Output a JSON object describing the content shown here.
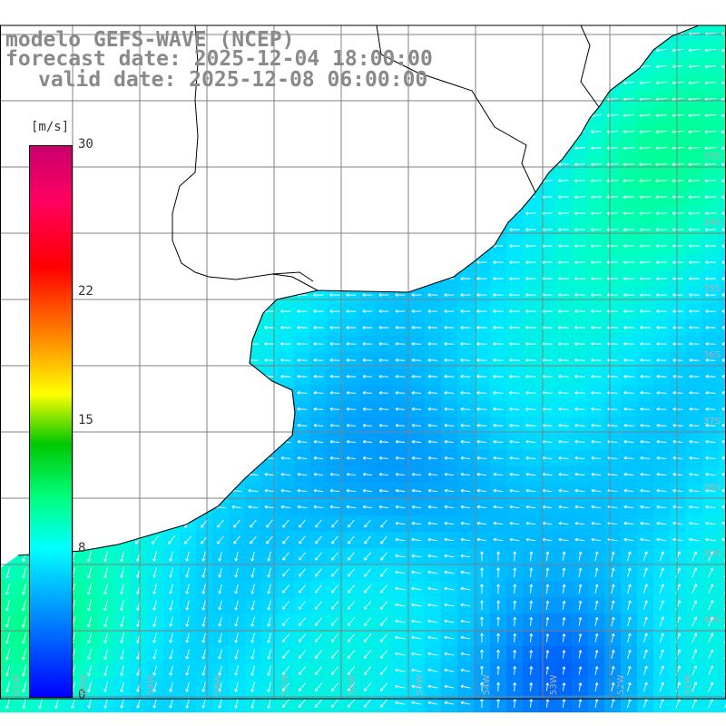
{
  "title": {
    "line1": "modelo GEFS-WAVE (NCEP)",
    "line2": "forecast date: 2025-12-04 18:00:00",
    "line3": "valid date: 2025-12-08 06:00:00"
  },
  "colorbar": {
    "unit": "[m/s]",
    "min": 0,
    "max": 30,
    "ticks": [
      {
        "label": "30",
        "value": 30
      },
      {
        "label": "22",
        "value": 22
      },
      {
        "label": "15",
        "value": 15
      },
      {
        "label": "8",
        "value": 8
      },
      {
        "label": "0",
        "value": 0
      }
    ],
    "colors": [
      "#0000ff",
      "#00a0ff",
      "#00ffff",
      "#00ff80",
      "#00c800",
      "#ffff00",
      "#ff8000",
      "#ff0000",
      "#ff0060",
      "#c8006e"
    ]
  },
  "map": {
    "lat_labels": [
      "33S",
      "34S",
      "35S",
      "36S",
      "37S",
      "38S",
      "39S",
      "40S"
    ],
    "lon_labels": [
      "61W",
      "60W",
      "59W",
      "58W",
      "57W",
      "56W",
      "55W",
      "54W",
      "53W",
      "52W",
      "51W"
    ],
    "field": "surface wind speed with direction arrows",
    "colors": {
      "land": "#ffffff",
      "coast": "#000000",
      "grid": "#808080"
    }
  }
}
